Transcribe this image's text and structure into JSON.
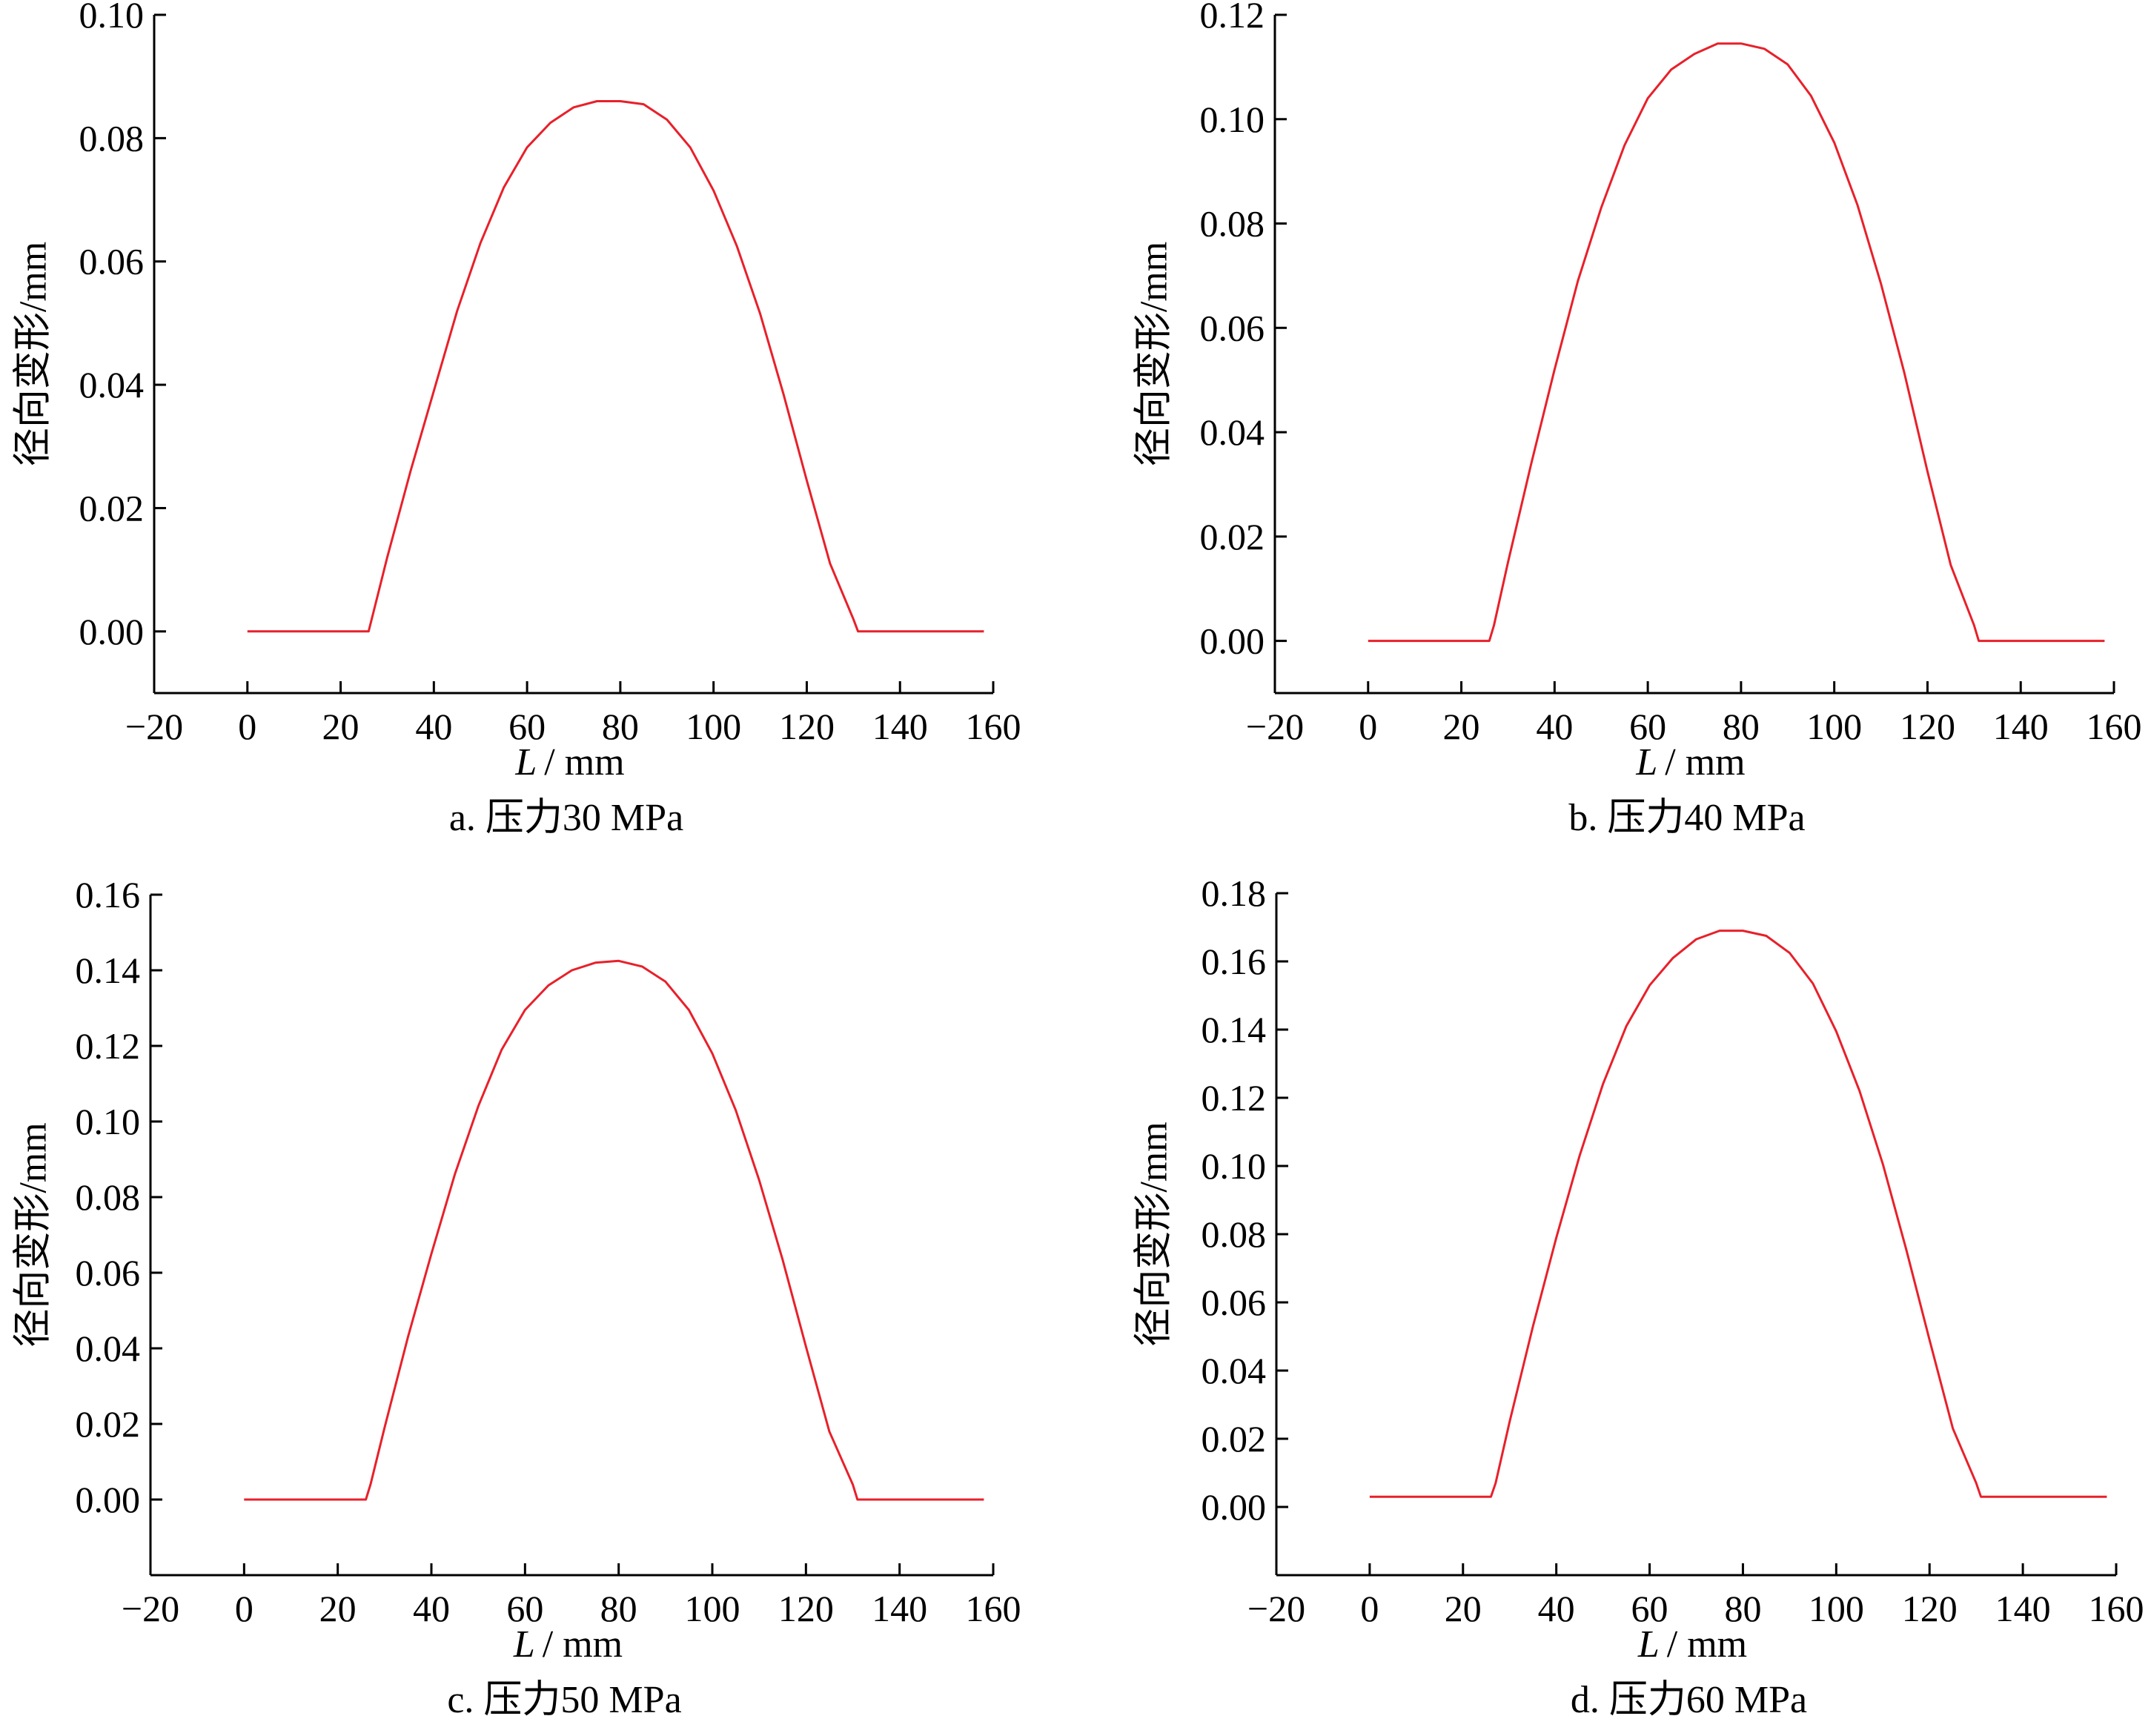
{
  "chart_data": [
    {
      "type": "line",
      "caption": "a. 压力30 MPa",
      "xlabel": "L / mm",
      "xlabel_var": "L",
      "xlabel_unit": "/ mm",
      "ylabel": "径向变形/mm",
      "xlim": [
        -20,
        160
      ],
      "ylim": [
        -0.01,
        0.1
      ],
      "xticks": [
        -20,
        0,
        20,
        40,
        60,
        80,
        100,
        120,
        140,
        160
      ],
      "xtick_labels": [
        "−20",
        "0",
        "20",
        "40",
        "60",
        "80",
        "100",
        "120",
        "140",
        "160"
      ],
      "yticks": [
        0,
        0.02,
        0.04,
        0.06,
        0.08,
        0.1
      ],
      "ytick_labels": [
        "0.00",
        "0.02",
        "0.04",
        "0.06",
        "0.08",
        "0.10"
      ],
      "color": "#e8202a",
      "series": [
        {
          "x": [
            0,
            10,
            20,
            26,
            27,
            30,
            35,
            40,
            45,
            50,
            55,
            60,
            65,
            70,
            75,
            80,
            85,
            90,
            95,
            100,
            105,
            110,
            115,
            120,
            125,
            130,
            131,
            132,
            140,
            150,
            158
          ],
          "values": [
            0,
            0,
            0,
            0,
            0.003,
            0.012,
            0.026,
            0.039,
            0.052,
            0.063,
            0.072,
            0.0785,
            0.0825,
            0.085,
            0.086,
            0.086,
            0.0855,
            0.083,
            0.0785,
            0.0715,
            0.0625,
            0.0515,
            0.0385,
            0.0245,
            0.011,
            0.002,
            0,
            0,
            0,
            0,
            0
          ]
        }
      ]
    },
    {
      "type": "line",
      "caption": "b. 压力40 MPa",
      "xlabel": "L / mm",
      "xlabel_var": "L",
      "xlabel_unit": "/ mm",
      "ylabel": "径向变形/mm",
      "xlim": [
        -20,
        160
      ],
      "ylim": [
        -0.01,
        0.12
      ],
      "xticks": [
        -20,
        0,
        20,
        40,
        60,
        80,
        100,
        120,
        140,
        160
      ],
      "xtick_labels": [
        "−20",
        "0",
        "20",
        "40",
        "60",
        "80",
        "100",
        "120",
        "140",
        "160"
      ],
      "yticks": [
        0,
        0.02,
        0.04,
        0.06,
        0.08,
        0.1,
        0.12
      ],
      "ytick_labels": [
        "0.00",
        "0.02",
        "0.04",
        "0.06",
        "0.08",
        "0.10",
        "0.12"
      ],
      "color": "#e8202a",
      "series": [
        {
          "x": [
            0,
            10,
            20,
            26,
            27,
            30,
            35,
            40,
            45,
            50,
            55,
            60,
            65,
            70,
            75,
            80,
            85,
            90,
            95,
            100,
            105,
            110,
            115,
            120,
            125,
            130,
            131,
            132,
            140,
            150,
            158
          ],
          "values": [
            0,
            0,
            0,
            0,
            0.003,
            0.015,
            0.034,
            0.052,
            0.069,
            0.083,
            0.095,
            0.104,
            0.1095,
            0.1125,
            0.1145,
            0.1145,
            0.1135,
            0.1105,
            0.1045,
            0.0955,
            0.0835,
            0.0685,
            0.0515,
            0.0325,
            0.0145,
            0.003,
            0,
            0,
            0,
            0,
            0
          ]
        }
      ]
    },
    {
      "type": "line",
      "caption": "c. 压力50 MPa",
      "xlabel": "L / mm",
      "xlabel_var": "L",
      "xlabel_unit": "/ mm",
      "ylabel": "径向变形/mm",
      "xlim": [
        -20,
        160
      ],
      "ylim": [
        -0.02,
        0.16
      ],
      "xticks": [
        -20,
        0,
        20,
        40,
        60,
        80,
        100,
        120,
        140,
        160
      ],
      "xtick_labels": [
        "−20",
        "0",
        "20",
        "40",
        "60",
        "80",
        "100",
        "120",
        "140",
        "160"
      ],
      "yticks": [
        0,
        0.02,
        0.04,
        0.06,
        0.08,
        0.1,
        0.12,
        0.14,
        0.16
      ],
      "ytick_labels": [
        "0.00",
        "0.02",
        "0.04",
        "0.06",
        "0.08",
        "0.10",
        "0.12",
        "0.14",
        "0.16"
      ],
      "color": "#e8202a",
      "series": [
        {
          "x": [
            0,
            10,
            20,
            26,
            27,
            30,
            35,
            40,
            45,
            50,
            55,
            60,
            65,
            70,
            75,
            80,
            85,
            90,
            95,
            100,
            105,
            110,
            115,
            120,
            125,
            130,
            131,
            132,
            140,
            150,
            158
          ],
          "values": [
            0,
            0,
            0,
            0,
            0.004,
            0.019,
            0.043,
            0.065,
            0.086,
            0.104,
            0.119,
            0.1295,
            0.136,
            0.14,
            0.142,
            0.1425,
            0.141,
            0.137,
            0.1295,
            0.118,
            0.103,
            0.0845,
            0.0635,
            0.0405,
            0.018,
            0.004,
            0,
            0,
            0,
            0,
            0
          ]
        }
      ]
    },
    {
      "type": "line",
      "caption": "d. 压力60 MPa",
      "xlabel": "L / mm",
      "xlabel_var": "L",
      "xlabel_unit": "/ mm",
      "ylabel": "径向变形/mm",
      "xlim": [
        -20,
        160
      ],
      "ylim": [
        -0.02,
        0.18
      ],
      "xticks": [
        -20,
        0,
        20,
        40,
        60,
        80,
        100,
        120,
        140,
        160
      ],
      "xtick_labels": [
        "−20",
        "0",
        "20",
        "40",
        "60",
        "80",
        "100",
        "120",
        "140",
        "160"
      ],
      "yticks": [
        0,
        0.02,
        0.04,
        0.06,
        0.08,
        0.1,
        0.12,
        0.14,
        0.16,
        0.18
      ],
      "ytick_labels": [
        "0.00",
        "0.02",
        "0.04",
        "0.06",
        "0.08",
        "0.10",
        "0.12",
        "0.14",
        "0.16",
        "0.18"
      ],
      "color": "#e8202a",
      "series": [
        {
          "x": [
            0,
            10,
            20,
            26,
            27,
            30,
            35,
            40,
            45,
            50,
            55,
            60,
            65,
            70,
            75,
            80,
            85,
            90,
            95,
            100,
            105,
            110,
            115,
            120,
            125,
            130,
            131,
            132,
            140,
            150,
            158
          ],
          "values": [
            0.003,
            0.003,
            0.003,
            0.003,
            0.007,
            0.025,
            0.053,
            0.079,
            0.103,
            0.124,
            0.141,
            0.153,
            0.161,
            0.1665,
            0.169,
            0.169,
            0.1675,
            0.1625,
            0.1535,
            0.1395,
            0.122,
            0.1005,
            0.0755,
            0.049,
            0.023,
            0.007,
            0.003,
            0.003,
            0.003,
            0.003,
            0.003
          ]
        }
      ]
    }
  ]
}
